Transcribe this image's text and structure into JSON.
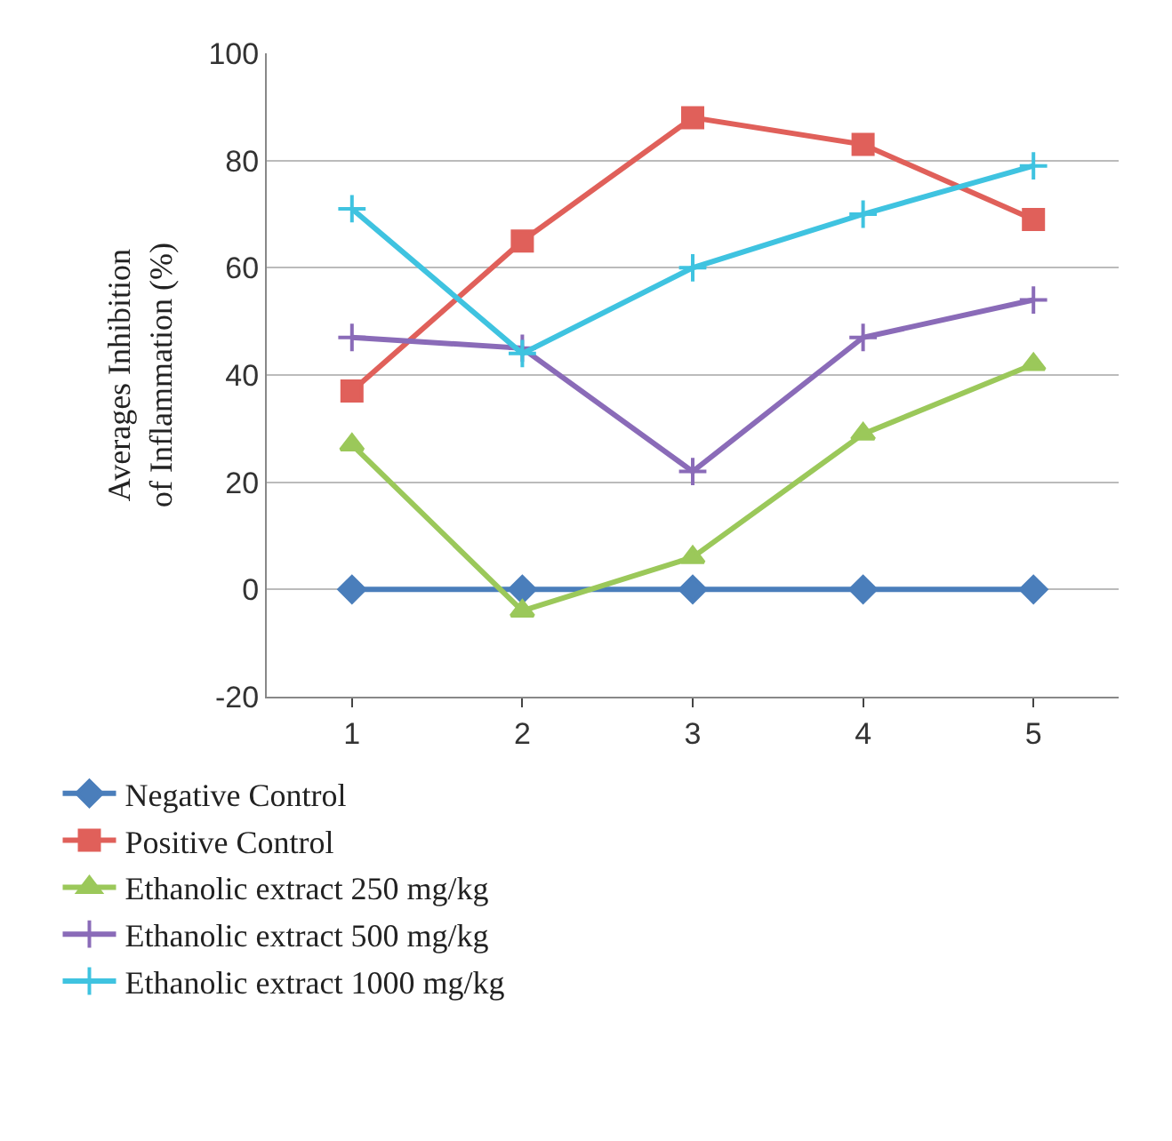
{
  "chart_data": {
    "type": "line",
    "ylabel": "Averages Inhibition\nof Inflammation (%)",
    "categories": [
      "1",
      "2",
      "3",
      "4",
      "5"
    ],
    "series": [
      {
        "name": "Negative Control",
        "color": "#4a7ebb",
        "marker": "diamond",
        "values": [
          0,
          0,
          0,
          0,
          0
        ]
      },
      {
        "name": "Positive Control",
        "color": "#e0605a",
        "marker": "square",
        "values": [
          37,
          65,
          88,
          83,
          69
        ]
      },
      {
        "name": "Ethanolic extract 250 mg/kg",
        "color": "#9bc85a",
        "marker": "triangle",
        "values": [
          27,
          -4,
          6,
          29,
          42
        ]
      },
      {
        "name": "Ethanolic extract 500 mg/kg",
        "color": "#8a6bb8",
        "marker": "cross",
        "values": [
          47,
          45,
          22,
          47,
          54
        ]
      },
      {
        "name": "Ethanolic extract 1000 mg/kg",
        "color": "#3fc3e0",
        "marker": "cross",
        "values": [
          71,
          44,
          60,
          70,
          79
        ]
      }
    ],
    "ylim": [
      -20,
      100
    ],
    "yticks": [
      -20,
      0,
      20,
      40,
      60,
      80,
      100
    ],
    "grid": "y",
    "legend": "bottom",
    "line_style": "solid"
  }
}
